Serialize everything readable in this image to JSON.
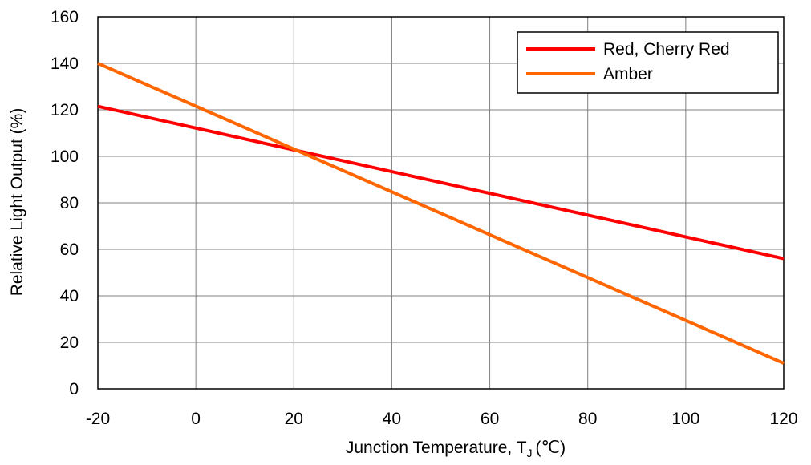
{
  "chart_data": {
    "type": "line",
    "xlabel": "Junction Temperature, T",
    "xlabel_subscript": "J",
    "xlabel_unit": "(℃)",
    "ylabel": "Relative Light Output (%)",
    "xlim": [
      -20,
      120
    ],
    "ylim": [
      0,
      160
    ],
    "x_ticks": [
      -20,
      0,
      20,
      40,
      60,
      80,
      100,
      120
    ],
    "y_ticks": [
      0,
      20,
      40,
      60,
      80,
      100,
      120,
      140,
      160
    ],
    "grid": true,
    "legend_position": "top-right",
    "series": [
      {
        "name": "Red, Cherry Red",
        "color": "#ff0000",
        "x": [
          -20,
          120
        ],
        "y": [
          121.5,
          56
        ]
      },
      {
        "name": "Amber",
        "color": "#ff6600",
        "x": [
          -20,
          120
        ],
        "y": [
          140,
          11
        ]
      }
    ]
  }
}
